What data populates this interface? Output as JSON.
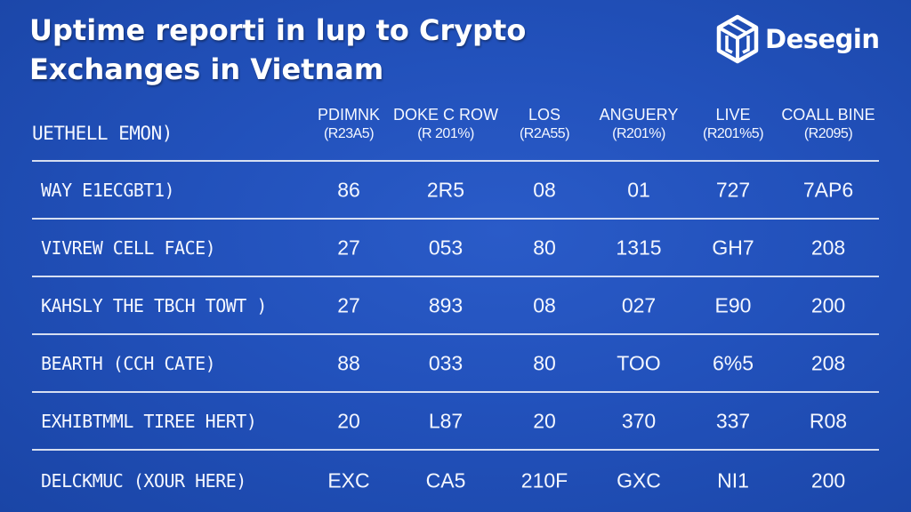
{
  "title": {
    "line1": "Uptime reporti in lup to Crypto",
    "line2": "Exchanges in Vietnam"
  },
  "logo": {
    "text": "Desegin",
    "icon": "cube-logo-icon"
  },
  "table": {
    "first_header": "UETHELL EMON)",
    "columns": [
      {
        "name": "PDIMNK",
        "sub": "(R23A5)"
      },
      {
        "name": "DOKE C ROW",
        "sub": "(R 201%)"
      },
      {
        "name": "LOS",
        "sub": "(R2A55)"
      },
      {
        "name": "ANGUERY",
        "sub": "(R201%)"
      },
      {
        "name": "LIVE",
        "sub": "(R201%5)"
      },
      {
        "name": "COALL BINE",
        "sub": "(R2095)"
      }
    ],
    "rows": [
      {
        "label": "WAY E1ECGBT1)",
        "cells": [
          "86",
          "2R5",
          "08",
          "01",
          "727",
          "7AP6"
        ]
      },
      {
        "label": "VIVREW CELL FACE)",
        "cells": [
          "27",
          "053",
          "80",
          "1315",
          "GH7",
          "208"
        ]
      },
      {
        "label": "KAHSLY THE TBCH TOWT )",
        "cells": [
          "27",
          "893",
          "08",
          "027",
          "E90",
          "200"
        ]
      },
      {
        "label": "BEARTH (CCH CATE)",
        "cells": [
          "88",
          "033",
          "80",
          "TOO",
          "6%5",
          "208"
        ]
      },
      {
        "label": "EXHIBTMML TIREE HERT)",
        "cells": [
          "20",
          "L87",
          "20",
          "370",
          "337",
          "R08"
        ]
      },
      {
        "label": "DELCKMUC (XOUR HERE)",
        "cells": [
          "EXC",
          "CA5",
          "210F",
          "GXC",
          "NI1",
          "200"
        ]
      }
    ]
  }
}
